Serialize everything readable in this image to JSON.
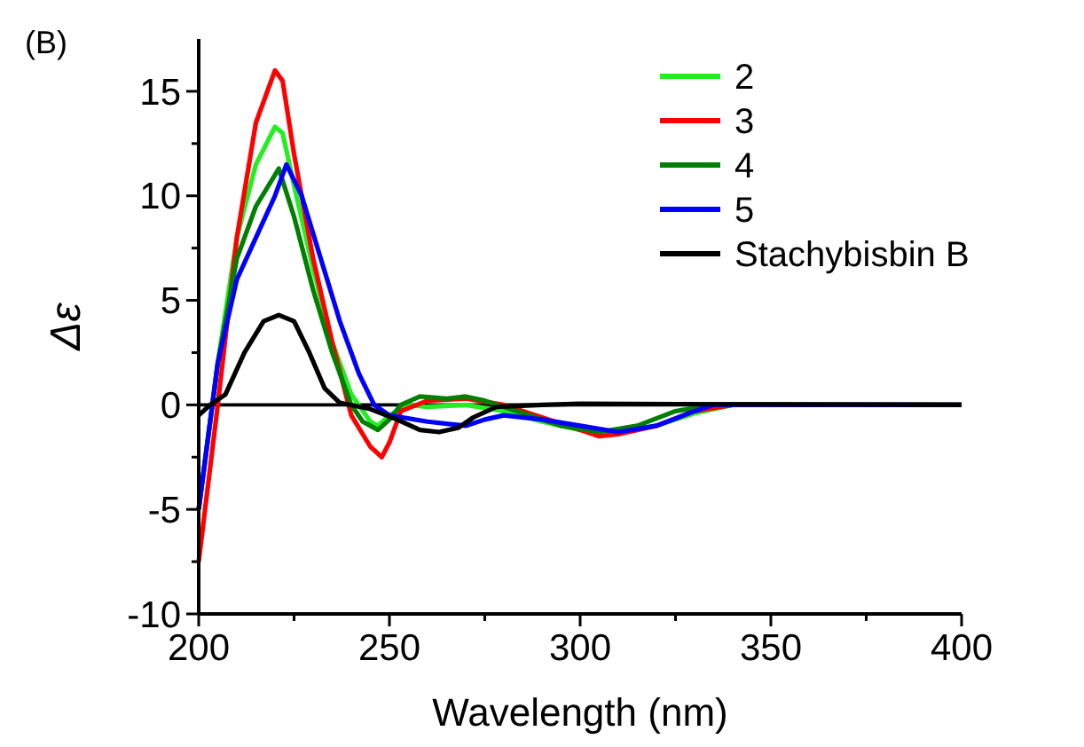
{
  "chart_data": {
    "type": "line",
    "xlabel": "Wavelength (nm)",
    "ylabel": "Δε",
    "annotations": [
      "(B)"
    ],
    "xlim": [
      200,
      400
    ],
    "ylim": [
      -10,
      17.5
    ],
    "xticks": [
      200,
      {
        "value": 225,
        "label": null
      },
      250,
      {
        "value": 275,
        "label": null
      },
      300,
      {
        "value": 325,
        "label": null
      },
      350,
      {
        "value": 375,
        "label": null
      },
      400
    ],
    "yticks": [
      -10,
      {
        "value": -7.5,
        "label": null
      },
      -5,
      {
        "value": -2.5,
        "label": null
      },
      0,
      {
        "value": 2.5,
        "label": null
      },
      5,
      {
        "value": 7.5,
        "label": null
      },
      10,
      {
        "value": 12.5,
        "label": null
      },
      15
    ],
    "legend": "top right",
    "ref_lines": [
      {
        "axis": "y",
        "value": 0,
        "label": null,
        "color": "#000000"
      }
    ],
    "series": [
      {
        "name": "2",
        "color": "#22ee22",
        "x": [
          200,
          205,
          210,
          215,
          220,
          222,
          225,
          230,
          235,
          240,
          245,
          247,
          250,
          255,
          260,
          270,
          280,
          290,
          300,
          310,
          320,
          330,
          340,
          400
        ],
        "values": [
          -5,
          2,
          8,
          11.5,
          13.3,
          13,
          10.5,
          6.5,
          3,
          0.5,
          -0.8,
          -1,
          -0.5,
          0,
          -0.1,
          0,
          -0.3,
          -0.8,
          -1.2,
          -1.3,
          -1,
          -0.4,
          0,
          0
        ]
      },
      {
        "name": "3",
        "color": "#ff0000",
        "x": [
          200,
          205,
          210,
          215,
          220,
          222,
          225,
          230,
          235,
          240,
          245,
          248,
          250,
          253,
          260,
          270,
          280,
          290,
          300,
          305,
          310,
          320,
          330,
          340,
          400
        ],
        "values": [
          -7.5,
          0,
          8,
          13.5,
          16,
          15.5,
          12,
          7,
          3,
          -0.5,
          -2,
          -2.5,
          -1.8,
          -0.3,
          0.2,
          0.3,
          0,
          -0.6,
          -1.2,
          -1.5,
          -1.4,
          -1,
          -0.3,
          0,
          0
        ]
      },
      {
        "name": "4",
        "color": "#008000",
        "x": [
          200,
          205,
          210,
          215,
          221,
          225,
          230,
          235,
          240,
          243,
          247,
          250,
          253,
          258,
          265,
          270,
          275,
          285,
          295,
          305,
          315,
          325,
          335,
          400
        ],
        "values": [
          -5,
          2,
          7,
          9.5,
          11.3,
          9,
          5.5,
          2.5,
          0,
          -0.8,
          -1.2,
          -0.7,
          0,
          0.4,
          0.3,
          0.4,
          0.2,
          -0.4,
          -1,
          -1.3,
          -1,
          -0.3,
          0,
          0
        ]
      },
      {
        "name": "5",
        "color": "#0000ff",
        "x": [
          200,
          205,
          210,
          215,
          220,
          223,
          227,
          232,
          237,
          242,
          246,
          250,
          260,
          270,
          275,
          280,
          290,
          300,
          310,
          320,
          330,
          335,
          400
        ],
        "values": [
          -5,
          2,
          6,
          8,
          10,
          11.5,
          10,
          7,
          4,
          1.5,
          0,
          -0.5,
          -0.8,
          -1,
          -0.7,
          -0.5,
          -0.7,
          -1,
          -1.3,
          -1,
          -0.3,
          0,
          0
        ]
      },
      {
        "name": "Stachybisbin B",
        "color": "#000000",
        "x": [
          200,
          203,
          207,
          212,
          217,
          221,
          225,
          229,
          233,
          237,
          245,
          252,
          258,
          263,
          268,
          272,
          278,
          290,
          300,
          400
        ],
        "values": [
          -0.5,
          0,
          0.5,
          2.5,
          4,
          4.3,
          4,
          2.5,
          0.8,
          0.1,
          -0.2,
          -0.7,
          -1.2,
          -1.3,
          -1.1,
          -0.6,
          -0.1,
          0,
          0.05,
          0
        ]
      }
    ]
  }
}
